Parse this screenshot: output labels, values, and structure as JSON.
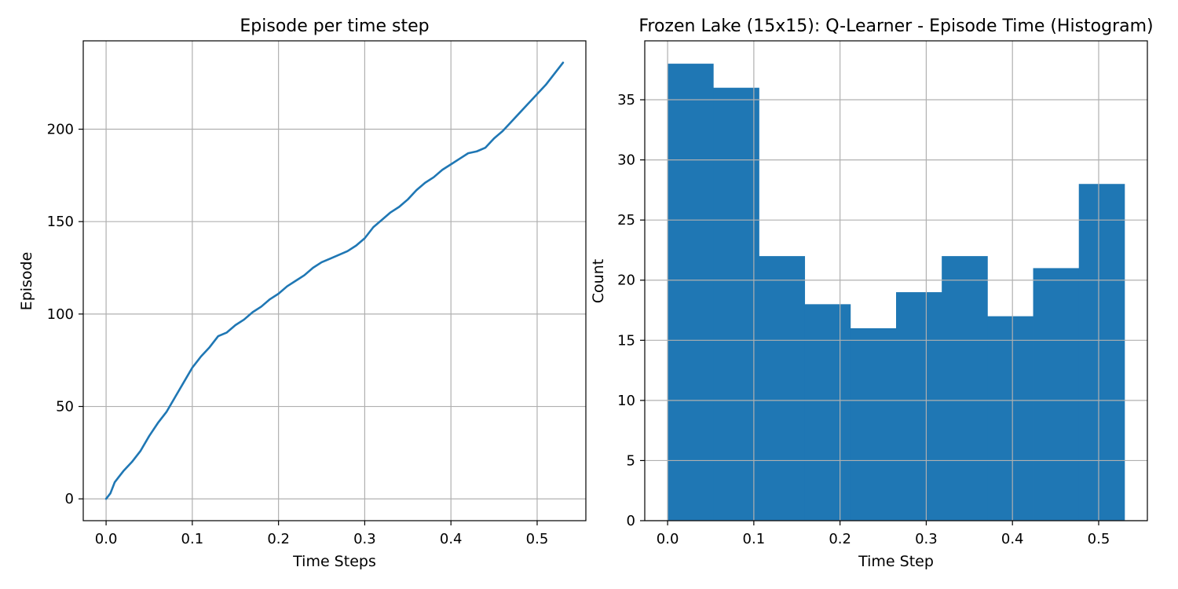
{
  "chart_data": [
    {
      "type": "line",
      "title": "Episode per time step",
      "xlabel": "Time Steps",
      "ylabel": "Episode",
      "xlim": [
        -0.0265,
        0.5565
      ],
      "ylim": [
        -11.8,
        247.8
      ],
      "grid": true,
      "xticks": [
        0.0,
        0.1,
        0.2,
        0.3,
        0.4,
        0.5
      ],
      "xtick_labels": [
        "0.0",
        "0.1",
        "0.2",
        "0.3",
        "0.4",
        "0.5"
      ],
      "yticks": [
        0,
        50,
        100,
        150,
        200
      ],
      "ytick_labels": [
        "0",
        "50",
        "100",
        "150",
        "200"
      ],
      "color": "#1f77b4",
      "series": [
        {
          "x": [
            0.0,
            0.005,
            0.01,
            0.015,
            0.02,
            0.03,
            0.04,
            0.05,
            0.06,
            0.07,
            0.08,
            0.09,
            0.1,
            0.11,
            0.12,
            0.13,
            0.14,
            0.15,
            0.16,
            0.17,
            0.18,
            0.19,
            0.2,
            0.21,
            0.22,
            0.23,
            0.24,
            0.25,
            0.26,
            0.27,
            0.28,
            0.29,
            0.3,
            0.31,
            0.32,
            0.33,
            0.34,
            0.35,
            0.36,
            0.37,
            0.38,
            0.39,
            0.4,
            0.41,
            0.42,
            0.43,
            0.44,
            0.45,
            0.46,
            0.47,
            0.48,
            0.49,
            0.5,
            0.51,
            0.52,
            0.53
          ],
          "y": [
            0,
            3,
            9,
            12,
            15,
            20,
            26,
            34,
            41,
            47,
            55,
            63,
            71,
            77,
            82,
            88,
            90,
            94,
            97,
            101,
            104,
            108,
            111,
            115,
            118,
            121,
            125,
            128,
            130,
            132,
            134,
            137,
            141,
            147,
            151,
            155,
            158,
            162,
            167,
            171,
            174,
            178,
            181,
            184,
            187,
            188,
            190,
            195,
            199,
            204,
            209,
            214,
            219,
            224,
            230,
            236
          ]
        }
      ]
    },
    {
      "type": "bar",
      "title": "Frozen Lake (15x15): Q-Learner - Episode Time (Histogram)",
      "xlabel": "Time Step",
      "ylabel": "Count",
      "xlim": [
        -0.0265,
        0.5565
      ],
      "ylim": [
        0,
        39.9
      ],
      "grid": true,
      "xticks": [
        0.0,
        0.1,
        0.2,
        0.3,
        0.4,
        0.5
      ],
      "xtick_labels": [
        "0.0",
        "0.1",
        "0.2",
        "0.3",
        "0.4",
        "0.5"
      ],
      "yticks": [
        0,
        5,
        10,
        15,
        20,
        25,
        30,
        35
      ],
      "ytick_labels": [
        "0",
        "5",
        "10",
        "15",
        "20",
        "25",
        "30",
        "35"
      ],
      "color": "#1f77b4",
      "bin_edges": [
        0.0,
        0.053,
        0.106,
        0.159,
        0.212,
        0.265,
        0.318,
        0.371,
        0.424,
        0.477,
        0.53
      ],
      "values": [
        38,
        36,
        22,
        18,
        16,
        19,
        22,
        17,
        21,
        28
      ]
    }
  ]
}
